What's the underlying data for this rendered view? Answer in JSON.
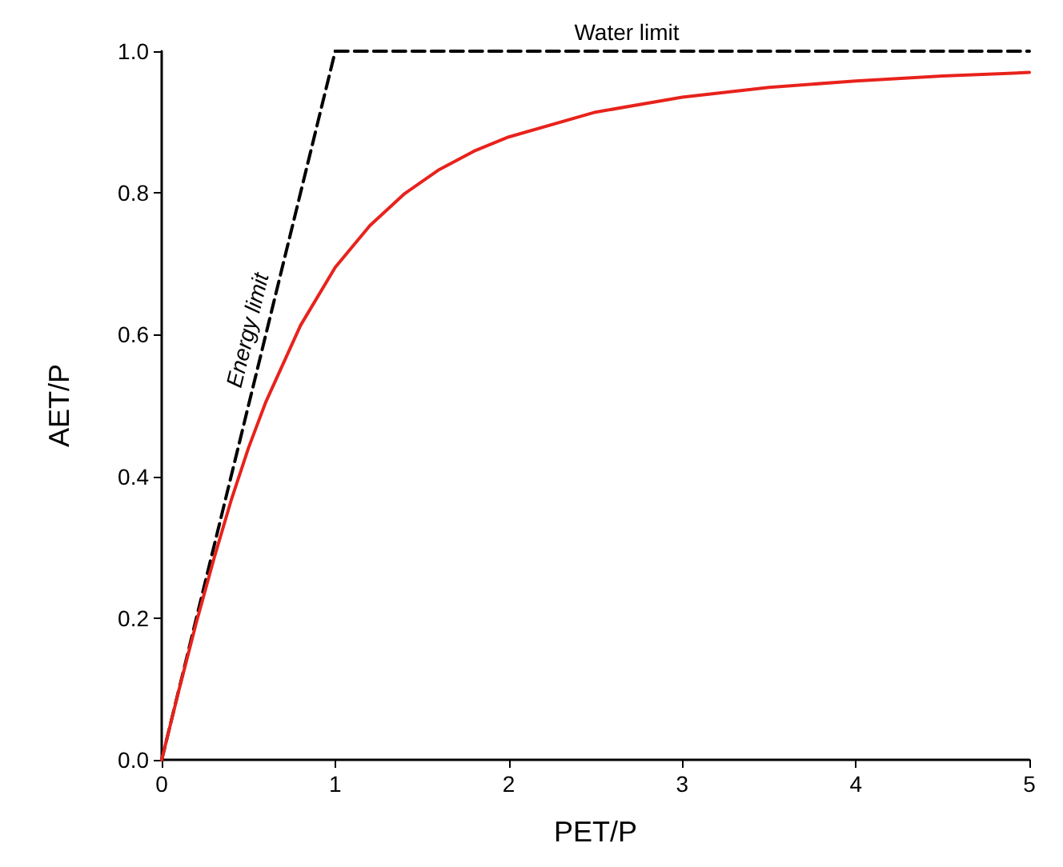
{
  "chart_data": {
    "type": "line",
    "xlabel": "PET/P",
    "ylabel": "AET/P",
    "xlim": [
      0,
      5
    ],
    "ylim": [
      0,
      1
    ],
    "xticks": [
      0,
      1,
      2,
      3,
      4,
      5
    ],
    "yticks": [
      {
        "value": 0,
        "label": "0.0"
      },
      {
        "value": 0.2,
        "label": "0.2"
      },
      {
        "value": 0.4,
        "label": "0.4"
      },
      {
        "value": 0.6,
        "label": "0.6"
      },
      {
        "value": 0.8,
        "label": "0.8"
      },
      {
        "value": 1,
        "label": "1.0"
      }
    ],
    "grid": false,
    "marker": "none",
    "series": [
      {
        "color": "#e8221c",
        "line_style": "solid",
        "x": [
          0,
          0.1,
          0.2,
          0.3,
          0.4,
          0.5,
          0.6,
          0.8,
          1,
          1.2,
          1.4,
          1.6,
          1.8,
          2,
          2.5,
          3,
          3.5,
          4,
          4.5,
          5
        ],
        "values": [
          0,
          0.099,
          0.194,
          0.283,
          0.366,
          0.44,
          0.505,
          0.613,
          0.695,
          0.754,
          0.799,
          0.833,
          0.859,
          0.879,
          0.914,
          0.935,
          0.949,
          0.958,
          0.965,
          0.97
        ]
      },
      {
        "name": "Energy limit",
        "color": "#000000",
        "line_style": "dashed",
        "x": [
          0,
          1
        ],
        "values": [
          0,
          1
        ]
      },
      {
        "name": "Water limit",
        "color": "#000000",
        "line_style": "dashed",
        "x": [
          1,
          5
        ],
        "values": [
          1,
          1
        ]
      }
    ]
  }
}
